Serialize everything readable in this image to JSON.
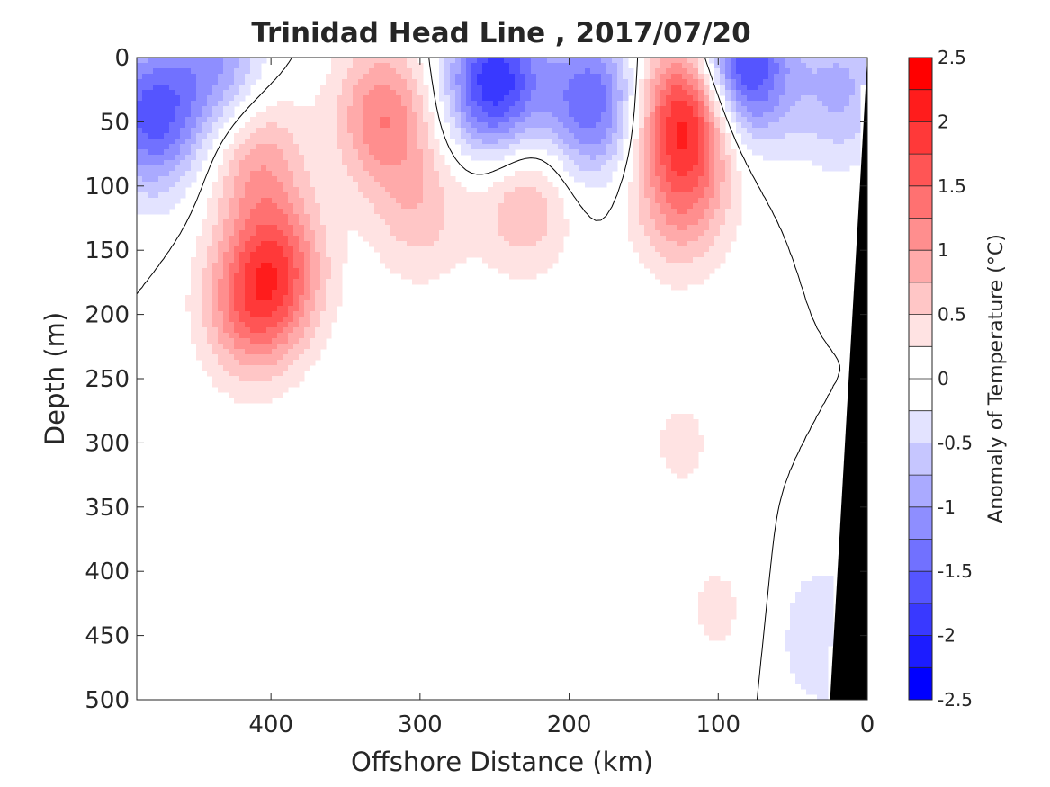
{
  "chart_data": {
    "type": "heatmap",
    "title": "Trinidad Head Line , 2017/07/20",
    "xlabel": "Offshore Distance (km)",
    "ylabel": "Depth (m)",
    "xlim": [
      490,
      0
    ],
    "ylim": [
      0,
      500
    ],
    "x_reversed": true,
    "y_reversed": true,
    "x_ticks": [
      400,
      300,
      200,
      100,
      0
    ],
    "x_tick_labels": [
      "400",
      "300",
      "200",
      "100",
      "0"
    ],
    "y_ticks": [
      0,
      50,
      100,
      150,
      200,
      250,
      300,
      350,
      400,
      450,
      500
    ],
    "y_tick_labels": [
      "0",
      "50",
      "100",
      "150",
      "200",
      "250",
      "300",
      "350",
      "400",
      "450",
      "500"
    ],
    "colorbar": {
      "label": "Anomaly of Temperature (°C)",
      "min": -2.5,
      "max": 2.5,
      "step": 0.25,
      "ticks": [
        2.5,
        2,
        1.5,
        1,
        0.5,
        0,
        -0.5,
        -1,
        -1.5,
        -2,
        -2.5
      ],
      "tick_labels": [
        "2.5",
        "2",
        "1.5",
        "1",
        "0.5",
        "0",
        "-0.5",
        "-1",
        "-1.5",
        "-2",
        "-2.5"
      ],
      "low_color": "#0000ff",
      "mid_color": "#ffffff",
      "high_color": "#ff0000"
    },
    "zero_contour": true,
    "seafloor_color": "#000000",
    "seafloor_boundary": [
      [
        0,
        0
      ],
      [
        25,
        500
      ]
    ],
    "anomaly_features": [
      {
        "x": 395,
        "depth": 165,
        "value": 1.3
      },
      {
        "x": 415,
        "depth": 195,
        "value": 1.1
      },
      {
        "x": 410,
        "depth": 80,
        "value": 0.9
      },
      {
        "x": 325,
        "depth": 45,
        "value": 1.2
      },
      {
        "x": 300,
        "depth": 120,
        "value": 0.6
      },
      {
        "x": 230,
        "depth": 110,
        "value": 0.8
      },
      {
        "x": 120,
        "depth": 40,
        "value": 2.1
      },
      {
        "x": 125,
        "depth": 110,
        "value": 1.0
      },
      {
        "x": 125,
        "depth": 300,
        "value": 0.3
      },
      {
        "x": 100,
        "depth": 430,
        "value": 0.3
      },
      {
        "x": 480,
        "depth": 45,
        "value": -1.6
      },
      {
        "x": 435,
        "depth": 8,
        "value": -1.0
      },
      {
        "x": 250,
        "depth": 20,
        "value": -2.0
      },
      {
        "x": 185,
        "depth": 35,
        "value": -1.5
      },
      {
        "x": 85,
        "depth": 8,
        "value": -2.1
      },
      {
        "x": 18,
        "depth": 25,
        "value": -0.8
      },
      {
        "x": 30,
        "depth": 450,
        "value": -0.5
      }
    ]
  }
}
